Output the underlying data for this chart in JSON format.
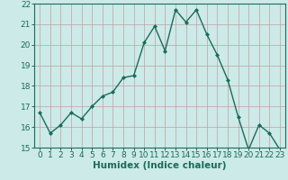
{
  "x": [
    0,
    1,
    2,
    3,
    4,
    5,
    6,
    7,
    8,
    9,
    10,
    11,
    12,
    13,
    14,
    15,
    16,
    17,
    18,
    19,
    20,
    21,
    22,
    23
  ],
  "y": [
    16.7,
    15.7,
    16.1,
    16.7,
    16.4,
    17.0,
    17.5,
    17.7,
    18.4,
    18.5,
    20.1,
    20.9,
    19.7,
    21.7,
    21.1,
    21.7,
    20.5,
    19.5,
    18.3,
    16.5,
    14.9,
    16.1,
    15.7,
    14.9
  ],
  "xlim": [
    -0.5,
    23.5
  ],
  "ylim": [
    15,
    22
  ],
  "xticks": [
    0,
    1,
    2,
    3,
    4,
    5,
    6,
    7,
    8,
    9,
    10,
    11,
    12,
    13,
    14,
    15,
    16,
    17,
    18,
    19,
    20,
    21,
    22,
    23
  ],
  "yticks": [
    15,
    16,
    17,
    18,
    19,
    20,
    21,
    22
  ],
  "xlabel": "Humidex (Indice chaleur)",
  "line_color": "#1a6b5a",
  "marker": "D",
  "marker_size": 2.0,
  "bg_color": "#cceae8",
  "grid_h_color": "#c0a0a0",
  "grid_v_color": "#c0a0a0",
  "xlabel_fontsize": 7.5,
  "tick_fontsize": 6.5,
  "linewidth": 1.0
}
